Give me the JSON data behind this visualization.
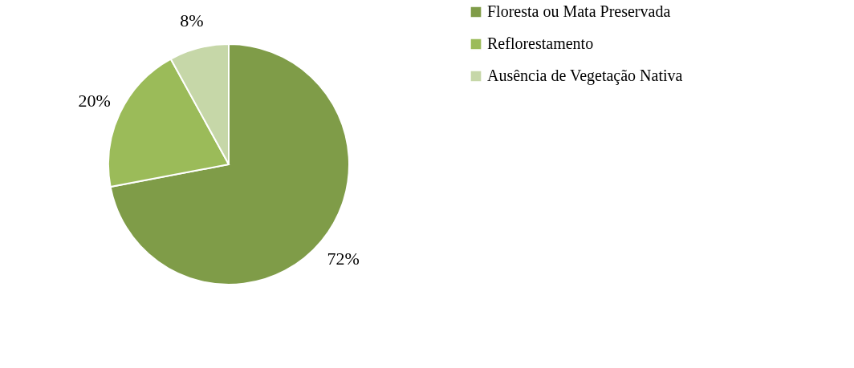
{
  "chart_data": {
    "type": "pie",
    "categories": [
      "Floresta ou Mata Preservada",
      "Reflorestamento",
      "Ausência de Vegetação Nativa"
    ],
    "values": [
      72,
      20,
      8
    ],
    "colors": [
      "#7f9c48",
      "#9bbb59",
      "#c6d7a8"
    ],
    "value_labels": [
      "72%",
      "20%",
      "8%"
    ],
    "legend": "right"
  }
}
